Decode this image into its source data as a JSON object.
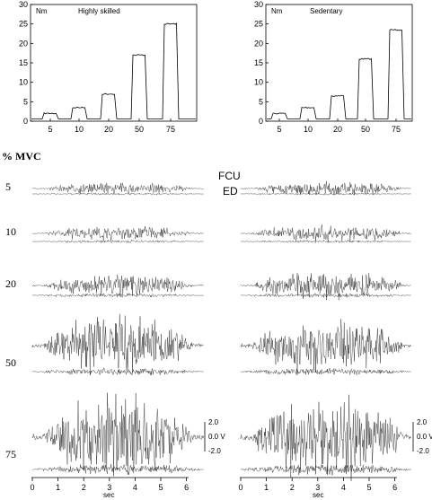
{
  "torque_charts": [
    {
      "title": "Highly skilled",
      "unit": "Nm",
      "type": "line",
      "ylim": [
        0,
        30
      ],
      "yticks": [
        "0",
        "5",
        "10",
        "15",
        "20",
        "25",
        "30"
      ],
      "xtick_labels": [
        "5",
        "10",
        "20",
        "50",
        "75"
      ],
      "plateaus": [
        2,
        3.5,
        7,
        17,
        25
      ]
    },
    {
      "title": "Sedentary",
      "unit": "Nm",
      "type": "line",
      "ylim": [
        0,
        30
      ],
      "yticks": [
        "0",
        "5",
        "10",
        "15",
        "20",
        "25",
        "30"
      ],
      "xtick_labels": [
        "5",
        "10",
        "20",
        "50",
        "75"
      ],
      "plateaus": [
        2,
        3.5,
        6.5,
        16,
        23.5
      ]
    }
  ],
  "mvc_label": "% MVC",
  "muscles": {
    "upper": "FCU",
    "lower": "ED"
  },
  "levels": [
    "5",
    "10",
    "20",
    "50",
    "75"
  ],
  "emg": {
    "left_amplitude_fcu": [
      0.4,
      0.5,
      0.8,
      2.2,
      3.0
    ],
    "left_amplitude_ed": [
      0.08,
      0.1,
      0.15,
      0.25,
      0.35
    ],
    "right_amplitude_fcu": [
      0.5,
      0.6,
      1.0,
      1.8,
      3.0
    ],
    "right_amplitude_ed": [
      0.08,
      0.1,
      0.15,
      0.25,
      0.4
    ]
  },
  "volt_scale": [
    "2.0",
    "0.0 V",
    "-2.0"
  ],
  "time_axis": {
    "label": "sec",
    "ticks": [
      "0",
      "1",
      "2",
      "3",
      "4",
      "5",
      "6"
    ]
  }
}
